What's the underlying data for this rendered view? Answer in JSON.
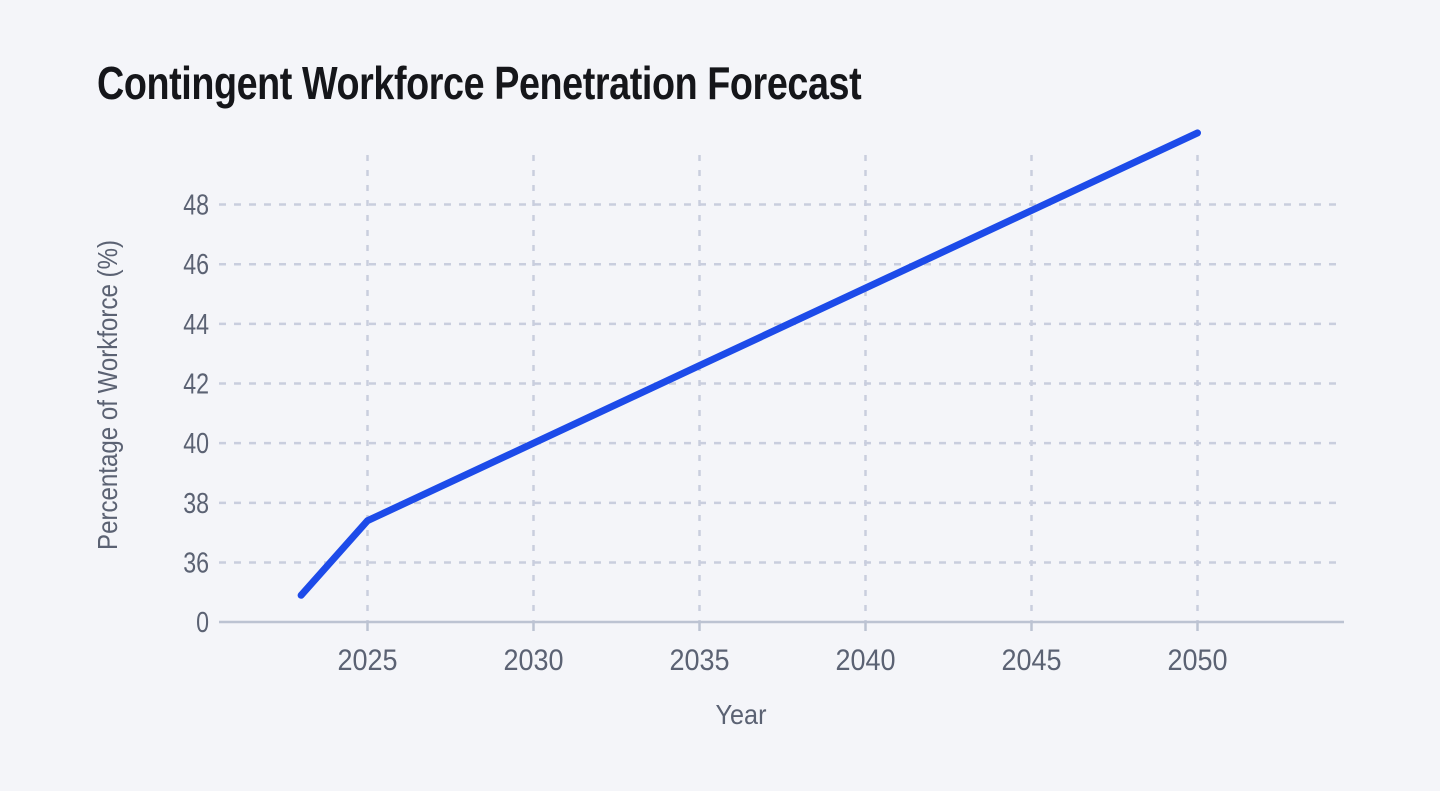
{
  "title": "Contingent Workforce Penetration Forecast",
  "chart_data": {
    "type": "line",
    "title": "Contingent Workforce Penetration Forecast",
    "xlabel": "Year",
    "ylabel": "Percentage of Workforce (%)",
    "x": [
      2023,
      2025,
      2030,
      2035,
      2040,
      2045,
      2050
    ],
    "values": [
      34.9,
      37.4,
      40,
      42.6,
      45.2,
      47.8,
      50.4
    ],
    "x_ticks": [
      2025,
      2030,
      2035,
      2040,
      2045,
      2050
    ],
    "x_tick_labels": [
      "2025",
      "2030",
      "2035",
      "2040",
      "2045",
      "2050"
    ],
    "y_ticks": [
      0,
      36,
      38,
      40,
      42,
      44,
      46,
      48
    ],
    "y_tick_labels": [
      "0",
      "36",
      "38",
      "40",
      "42",
      "44",
      "46",
      "48"
    ],
    "grid": "dashed",
    "legend": "none",
    "xlim": [
      2020.6,
      2054.4
    ],
    "ylim": [
      34,
      50.6
    ],
    "y_axis_note": "0 tick rendered at axis baseline (broken scale between 0 and 36)"
  },
  "colors": {
    "background": "#f4f5f9",
    "title_text": "#15161a",
    "tick_text": "#5b6273",
    "gridline": "#c9cede",
    "axis_line": "#bcc3d2",
    "line": "#1d4be9"
  }
}
